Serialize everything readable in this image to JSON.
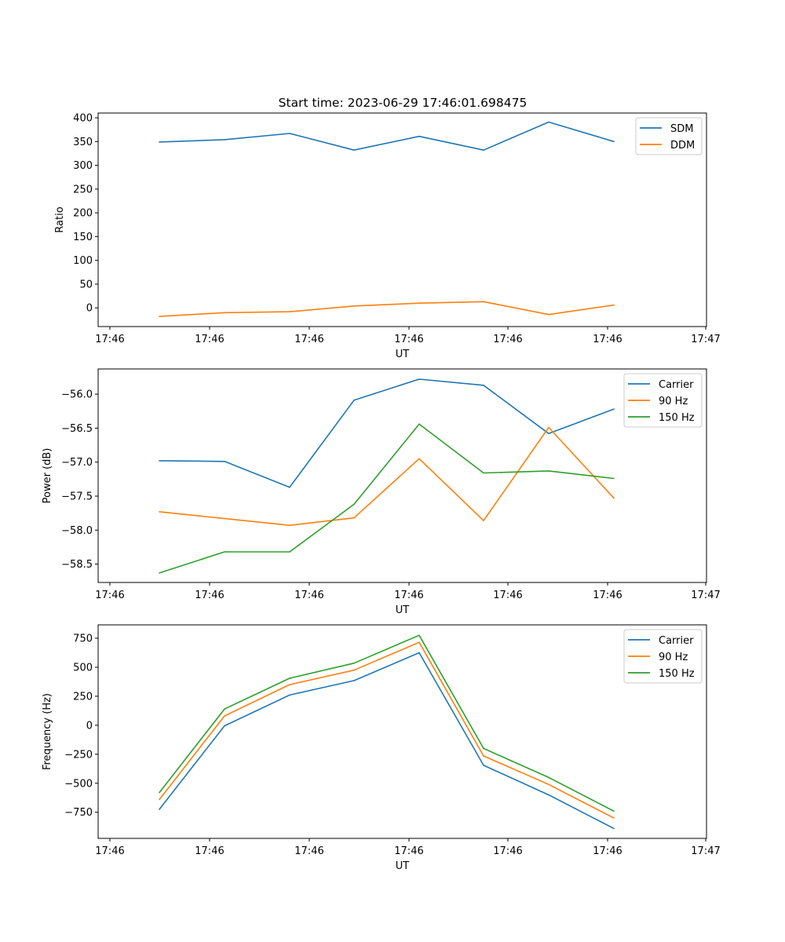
{
  "title": "Start time: 2023-06-29 17:46:01.698475",
  "colors": {
    "blue": "#1f77b4",
    "orange": "#ff7f0e",
    "green": "#2ca02c"
  },
  "chart_data": [
    {
      "type": "line",
      "title": "Start time: 2023-06-29 17:46:01.698475",
      "xlabel": "UT",
      "ylabel": "Ratio",
      "x_tick_labels": [
        "17:46",
        "17:46",
        "17:46",
        "17:46",
        "17:46",
        "17:46",
        "17:47"
      ],
      "y_ticks": [
        0,
        50,
        100,
        150,
        200,
        250,
        300,
        350,
        400
      ],
      "y_tick_labels": [
        "0",
        "50",
        "100",
        "150",
        "200",
        "250",
        "300",
        "350",
        "400"
      ],
      "ylim": [
        -39.3,
        410
      ],
      "legend_position": "upper right",
      "grid": false,
      "series": [
        {
          "name": "SDM",
          "color": "#1f77b4",
          "values": [
            349,
            354,
            367,
            332,
            361,
            332,
            391,
            350
          ]
        },
        {
          "name": "DDM",
          "color": "#ff7f0e",
          "values": [
            -18,
            -10,
            -8,
            4,
            10,
            13,
            -14,
            6
          ]
        }
      ]
    },
    {
      "type": "line",
      "xlabel": "UT",
      "ylabel": "Power (dB)",
      "x_tick_labels": [
        "17:46",
        "17:46",
        "17:46",
        "17:46",
        "17:46",
        "17:46",
        "17:47"
      ],
      "y_ticks": [
        -58.5,
        -58.0,
        -57.5,
        -57.0,
        -56.5,
        -56.0
      ],
      "y_tick_labels": [
        "−58.5",
        "−58.0",
        "−57.5",
        "−57.0",
        "−56.5",
        "−56.0"
      ],
      "ylim": [
        -58.77,
        -55.63
      ],
      "legend_position": "upper right",
      "grid": false,
      "series": [
        {
          "name": "Carrier",
          "color": "#1f77b4",
          "values": [
            -56.98,
            -56.99,
            -57.37,
            -56.09,
            -55.78,
            -55.87,
            -56.58,
            -56.22
          ]
        },
        {
          "name": "90 Hz",
          "color": "#ff7f0e",
          "values": [
            -57.73,
            -57.83,
            -57.93,
            -57.82,
            -56.95,
            -57.86,
            -56.49,
            -57.53
          ]
        },
        {
          "name": "150 Hz",
          "color": "#2ca02c",
          "values": [
            -58.63,
            -58.32,
            -58.32,
            -57.62,
            -56.44,
            -57.16,
            -57.13,
            -57.24
          ]
        }
      ]
    },
    {
      "type": "line",
      "xlabel": "UT",
      "ylabel": "Frequency (Hz)",
      "x_tick_labels": [
        "17:46",
        "17:46",
        "17:46",
        "17:46",
        "17:46",
        "17:46",
        "17:47"
      ],
      "y_ticks": [
        -750,
        -500,
        -250,
        0,
        250,
        500,
        750
      ],
      "y_tick_labels": [
        "−750",
        "−500",
        "−250",
        "0",
        "250",
        "500",
        "750"
      ],
      "ylim": [
        -975,
        865
      ],
      "legend_position": "upper right",
      "grid": false,
      "series": [
        {
          "name": "Carrier",
          "color": "#1f77b4",
          "values": [
            -725,
            -5,
            260,
            385,
            625,
            -345,
            -600,
            -890
          ]
        },
        {
          "name": "90 Hz",
          "color": "#ff7f0e",
          "values": [
            -640,
            80,
            350,
            475,
            715,
            -265,
            -510,
            -800
          ]
        },
        {
          "name": "150 Hz",
          "color": "#2ca02c",
          "values": [
            -580,
            140,
            405,
            535,
            775,
            -200,
            -450,
            -740
          ]
        }
      ]
    }
  ]
}
